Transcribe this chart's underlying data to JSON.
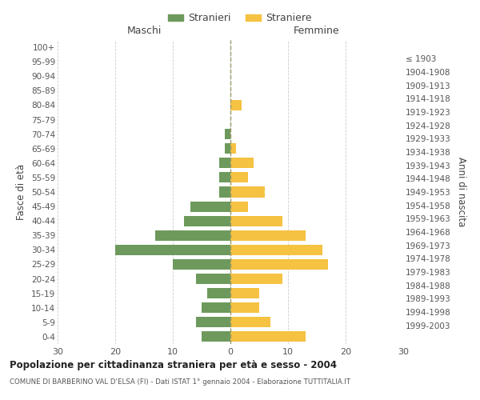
{
  "age_groups": [
    "0-4",
    "5-9",
    "10-14",
    "15-19",
    "20-24",
    "25-29",
    "30-34",
    "35-39",
    "40-44",
    "45-49",
    "50-54",
    "55-59",
    "60-64",
    "65-69",
    "70-74",
    "75-79",
    "80-84",
    "85-89",
    "90-94",
    "95-99",
    "100+"
  ],
  "birth_years": [
    "1999-2003",
    "1994-1998",
    "1989-1993",
    "1984-1988",
    "1979-1983",
    "1974-1978",
    "1969-1973",
    "1964-1968",
    "1959-1963",
    "1954-1958",
    "1949-1953",
    "1944-1948",
    "1939-1943",
    "1934-1938",
    "1929-1933",
    "1924-1928",
    "1919-1923",
    "1914-1918",
    "1909-1913",
    "1904-1908",
    "≤ 1903"
  ],
  "males": [
    5,
    6,
    5,
    4,
    6,
    10,
    20,
    13,
    8,
    7,
    2,
    2,
    2,
    1,
    1,
    0,
    0,
    0,
    0,
    0,
    0
  ],
  "females": [
    13,
    7,
    5,
    5,
    9,
    17,
    16,
    13,
    9,
    3,
    6,
    3,
    4,
    1,
    0,
    0,
    2,
    0,
    0,
    0,
    0
  ],
  "male_color": "#6d9a5c",
  "female_color": "#f5c242",
  "title": "Popolazione per cittadinanza straniera per età e sesso - 2004",
  "subtitle": "COMUNE DI BARBERINO VAL D'ELSA (FI) - Dati ISTAT 1° gennaio 2004 - Elaborazione TUTTITALIA.IT",
  "xlabel_left": "Maschi",
  "xlabel_right": "Femmine",
  "ylabel_left": "Fasce di età",
  "ylabel_right": "Anni di nascita",
  "xlim": 30,
  "legend_label_male": "Stranieri",
  "legend_label_female": "Straniere",
  "background_color": "#ffffff",
  "grid_color": "#cccccc"
}
